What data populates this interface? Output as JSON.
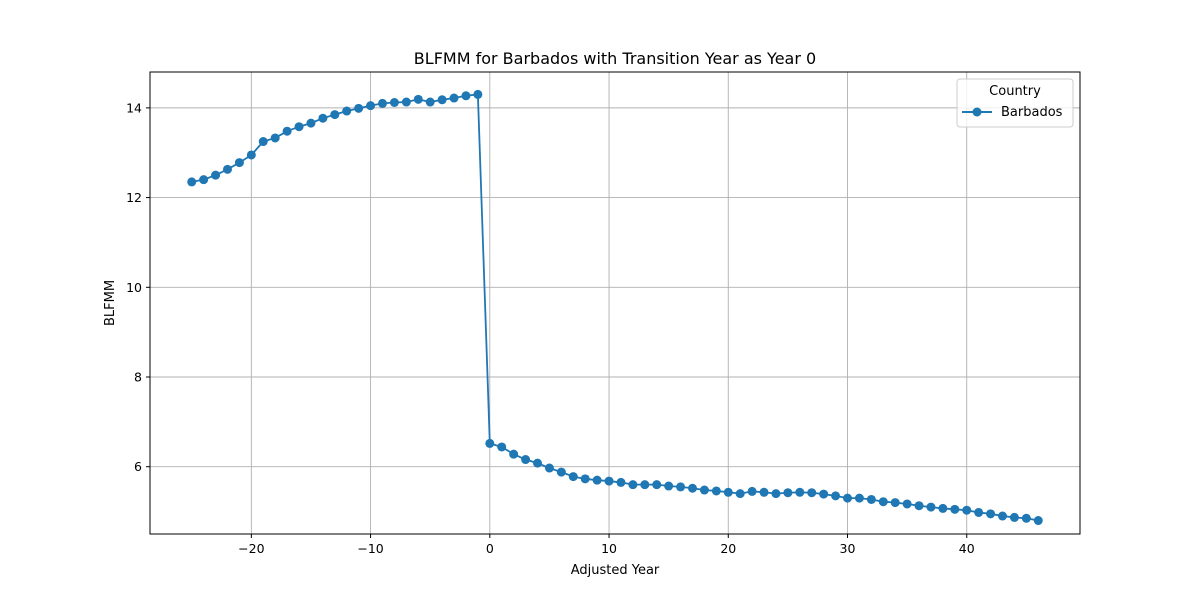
{
  "chart_data": {
    "type": "line",
    "title": "BLFMM for Barbados with Transition Year as Year 0",
    "xlabel": "Adjusted Year",
    "ylabel": "BLFMM",
    "xlim": [
      -28.5,
      49.5
    ],
    "ylim": [
      4.5,
      14.8
    ],
    "xticks": [
      -20,
      -10,
      0,
      10,
      20,
      30,
      40
    ],
    "xtick_labels": [
      "−20",
      "−10",
      "0",
      "10",
      "20",
      "30",
      "40"
    ],
    "yticks": [
      6,
      8,
      10,
      12,
      14
    ],
    "ytick_labels": [
      "6",
      "8",
      "10",
      "12",
      "14"
    ],
    "grid": true,
    "legend": {
      "title": "Country",
      "placement": "top-right"
    },
    "color": "#1f77b4",
    "series": [
      {
        "name": "Barbados",
        "x": [
          -25,
          -24,
          -23,
          -22,
          -21,
          -20,
          -19,
          -18,
          -17,
          -16,
          -15,
          -14,
          -13,
          -12,
          -11,
          -10,
          -9,
          -8,
          -7,
          -6,
          -5,
          -4,
          -3,
          -2,
          -1,
          0,
          1,
          2,
          3,
          4,
          5,
          6,
          7,
          8,
          9,
          10,
          11,
          12,
          13,
          14,
          15,
          16,
          17,
          18,
          19,
          20,
          21,
          22,
          23,
          24,
          25,
          26,
          27,
          28,
          29,
          30,
          31,
          32,
          33,
          34,
          35,
          36,
          37,
          38,
          39,
          40,
          41,
          42,
          43,
          44,
          45,
          46
        ],
        "y": [
          12.35,
          12.4,
          12.5,
          12.63,
          12.78,
          12.95,
          13.25,
          13.33,
          13.48,
          13.58,
          13.66,
          13.77,
          13.85,
          13.93,
          13.99,
          14.05,
          14.1,
          14.12,
          14.13,
          14.19,
          14.13,
          14.18,
          14.22,
          14.27,
          14.3,
          6.52,
          6.44,
          6.28,
          6.16,
          6.08,
          5.97,
          5.88,
          5.78,
          5.73,
          5.7,
          5.68,
          5.65,
          5.6,
          5.6,
          5.6,
          5.57,
          5.55,
          5.52,
          5.48,
          5.46,
          5.43,
          5.4,
          5.45,
          5.43,
          5.4,
          5.42,
          5.43,
          5.42,
          5.39,
          5.35,
          5.3,
          5.3,
          5.27,
          5.22,
          5.2,
          5.17,
          5.13,
          5.1,
          5.07,
          5.05,
          5.03,
          4.98,
          4.95,
          4.9,
          4.87,
          4.85,
          4.8
        ]
      }
    ]
  }
}
